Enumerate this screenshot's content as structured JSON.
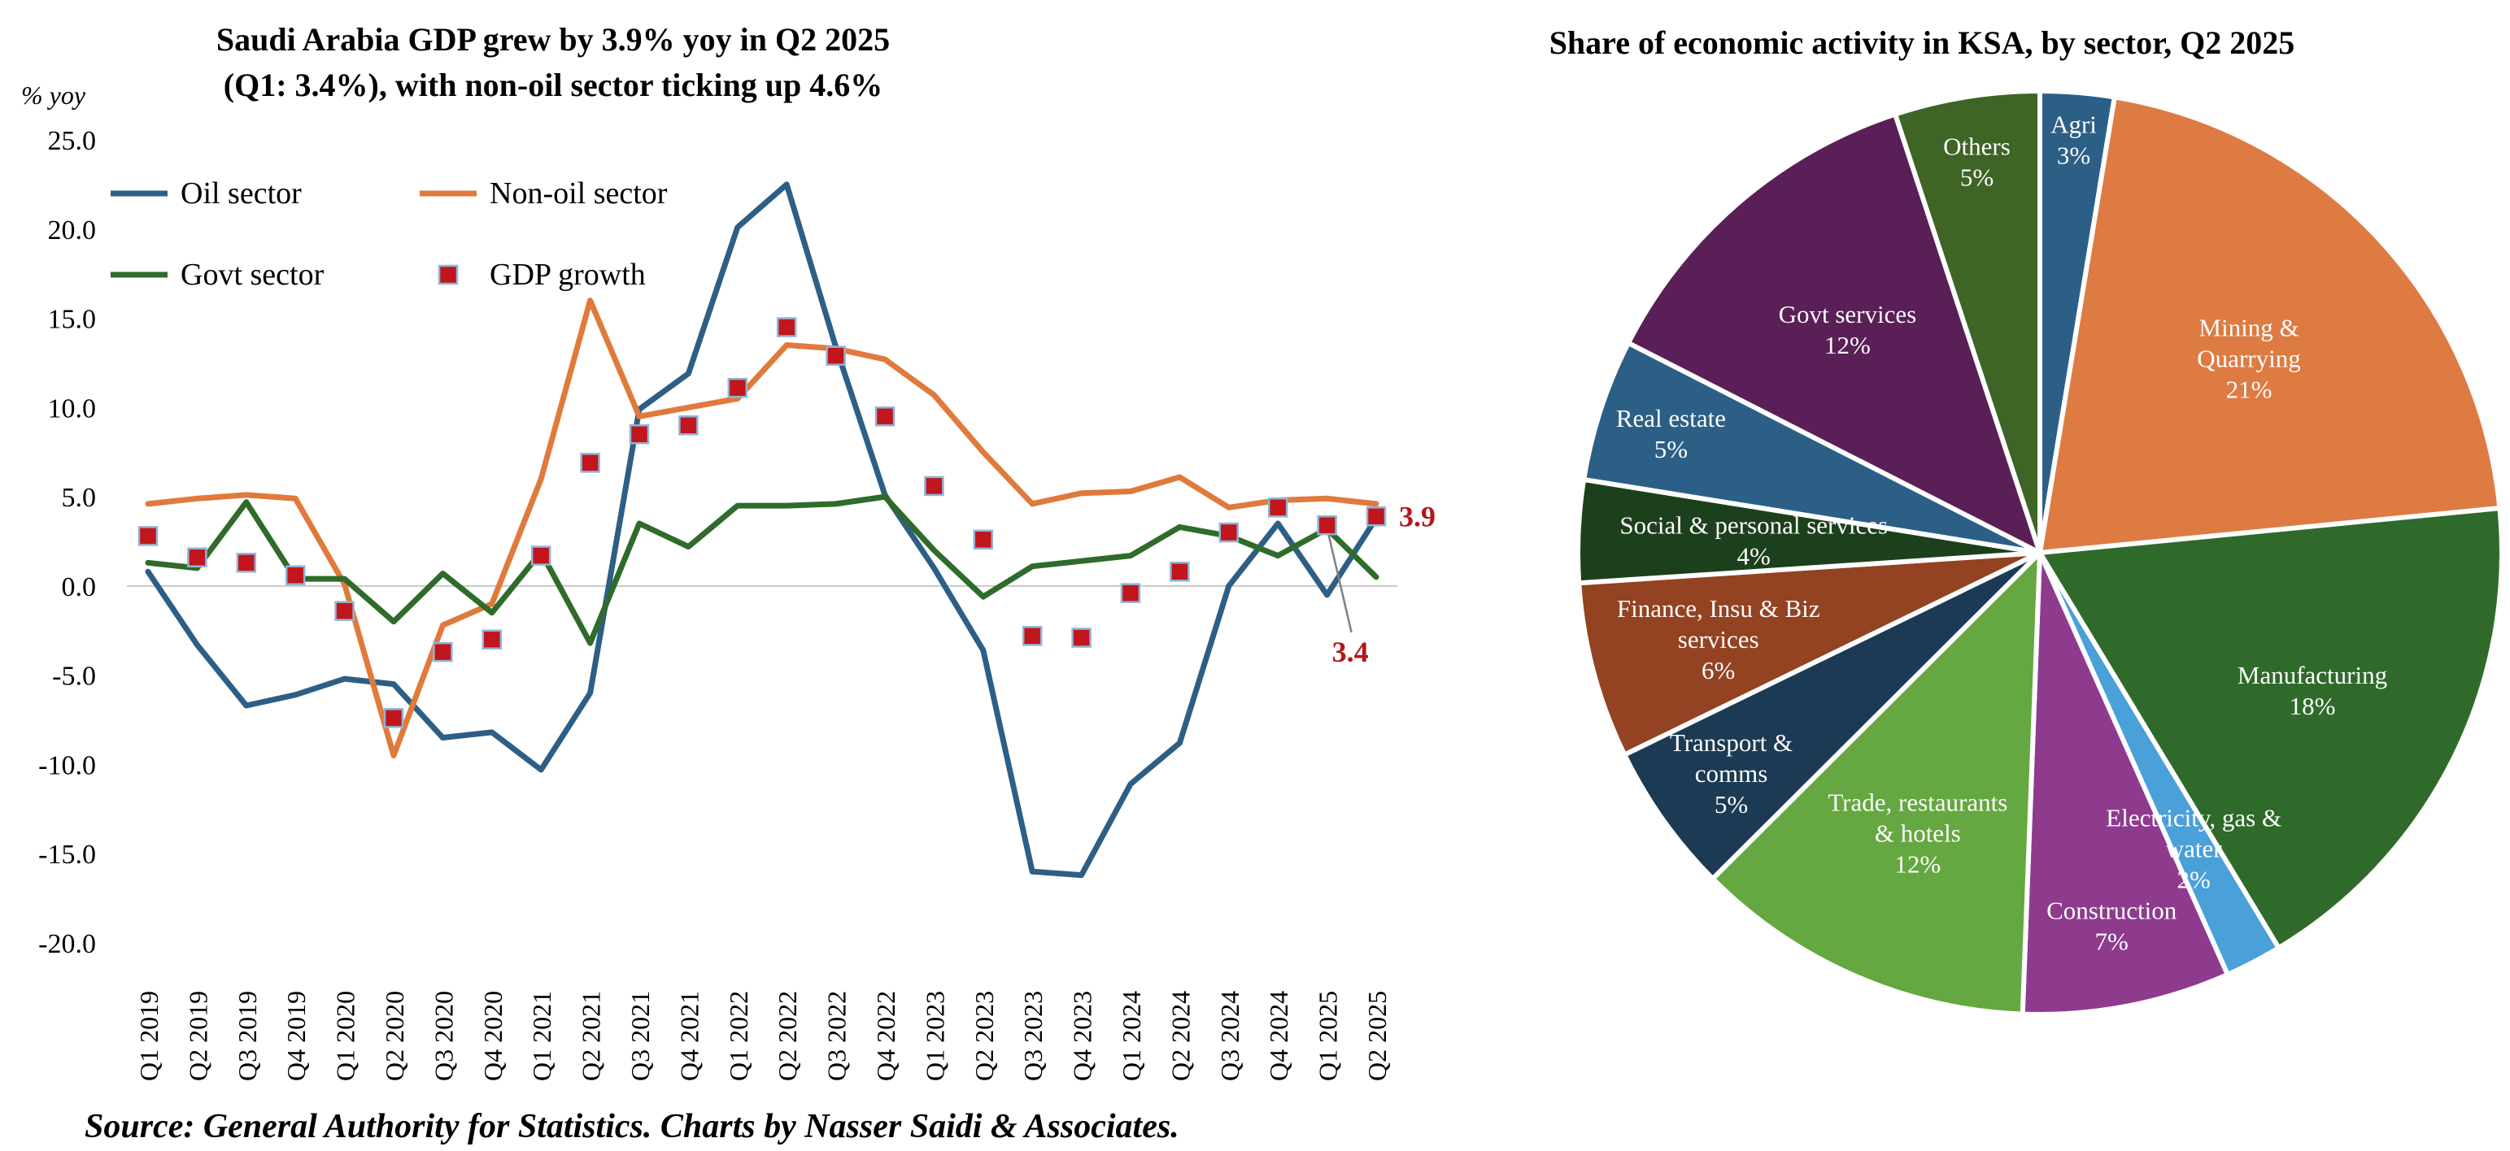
{
  "charts": {
    "line": {
      "title_line1": "Saudi Arabia GDP grew by 3.9% yoy in Q2 2025",
      "title_line2": "(Q1: 3.4%), with non-oil sector ticking up 4.6%",
      "y_unit": "% yoy",
      "last_label": "3.9",
      "prev_label": "3.4"
    },
    "pie": {
      "title": "Share of economic activity in KSA, by sector, Q2 2025"
    }
  },
  "source": "Source: General Authority for Statistics. Charts by Nasser Saidi & Associates.",
  "chart_data": [
    {
      "type": "line",
      "title": "Saudi Arabia GDP grew by 3.9% yoy in Q2 2025 (Q1: 3.4%), with non-oil sector ticking up 4.6%",
      "xlabel": "",
      "ylabel": "% yoy",
      "ylim": [
        -20,
        25
      ],
      "yticks": [
        "25.0",
        "20.0",
        "15.0",
        "10.0",
        "5.0",
        "0.0",
        "-5.0",
        "-10.0",
        "-15.0",
        "-20.0"
      ],
      "grid": false,
      "legend_position": "top-left",
      "categories": [
        "Q1 2019",
        "Q2 2019",
        "Q3 2019",
        "Q4 2019",
        "Q1 2020",
        "Q2 2020",
        "Q3 2020",
        "Q4 2020",
        "Q1 2021",
        "Q2 2021",
        "Q3 2021",
        "Q4 2021",
        "Q1 2022",
        "Q2 2022",
        "Q3 2022",
        "Q4 2022",
        "Q1 2023",
        "Q2 2023",
        "Q3 2023",
        "Q4 2023",
        "Q1 2024",
        "Q2 2024",
        "Q3 2024",
        "Q4 2024",
        "Q1 2025",
        "Q2 2025"
      ],
      "series": [
        {
          "name": "Oil sector",
          "kind": "line",
          "color": "#2d5f86",
          "values": [
            0.8,
            -3.3,
            -6.7,
            -6.1,
            -5.2,
            -5.5,
            -8.5,
            -8.2,
            -10.3,
            -6.0,
            9.9,
            11.9,
            20.1,
            22.5,
            13.4,
            5.1,
            1.0,
            -3.6,
            -16.0,
            -16.2,
            -11.1,
            -8.8,
            0.0,
            3.5,
            -0.5,
            3.8
          ]
        },
        {
          "name": "Non-oil sector",
          "kind": "line",
          "color": "#e07a3c",
          "values": [
            4.6,
            4.9,
            5.1,
            4.9,
            0.1,
            -9.5,
            -2.2,
            -1.0,
            6.0,
            16.0,
            9.5,
            10.0,
            10.5,
            13.5,
            13.3,
            12.7,
            10.7,
            7.5,
            4.6,
            5.2,
            5.3,
            6.1,
            4.4,
            4.8,
            4.9,
            4.6
          ]
        },
        {
          "name": "Govt sector",
          "kind": "line",
          "color": "#2f6b2a",
          "values": [
            1.3,
            1.0,
            4.7,
            0.4,
            0.4,
            -2.0,
            0.7,
            -1.5,
            1.9,
            -3.2,
            3.5,
            2.2,
            4.5,
            4.5,
            4.6,
            5.0,
            2.0,
            -0.6,
            1.1,
            1.4,
            1.7,
            3.3,
            2.8,
            1.7,
            3.2,
            0.5
          ]
        },
        {
          "name": "GDP growth",
          "kind": "markers",
          "color": "#c0161c",
          "values": [
            2.8,
            1.6,
            1.3,
            0.6,
            -1.4,
            -7.4,
            -3.7,
            -3.0,
            1.7,
            6.9,
            8.5,
            9.0,
            11.1,
            14.5,
            12.9,
            9.5,
            5.6,
            2.6,
            -2.8,
            -2.9,
            -0.4,
            0.8,
            3.0,
            4.4,
            3.4,
            3.9
          ]
        }
      ],
      "annotations": [
        {
          "category": "Q2 2025",
          "text": "3.9",
          "value": 3.9
        },
        {
          "category": "Q1 2025",
          "text": "3.4",
          "value": 3.4
        }
      ]
    },
    {
      "type": "pie",
      "title": "Share of economic activity in KSA, by sector, Q2 2025",
      "slices": [
        {
          "label": "Agri",
          "pct": "3%",
          "value": 2.6,
          "color": "#2c5f86",
          "text_color": "#ffffff"
        },
        {
          "label": "Mining & Quarrying",
          "pct": "21%",
          "value": 21.0,
          "color": "#dd7b43",
          "text_color": "#ffffff"
        },
        {
          "label": "Manufacturing",
          "pct": "18%",
          "value": 18.0,
          "color": "#2f6a2b",
          "text_color": "#ffffff"
        },
        {
          "label": "Electricity, gas & water",
          "pct": "2%",
          "value": 2.0,
          "color": "#4aa0d8",
          "text_color": "#ffffff"
        },
        {
          "label": "Construction",
          "pct": "7%",
          "value": 7.3,
          "color": "#8e3b8e",
          "text_color": "#ffffff"
        },
        {
          "label": "Trade, restaurants & hotels",
          "pct": "12%",
          "value": 12.0,
          "color": "#65a740",
          "text_color": "#ffffff"
        },
        {
          "label": "Transport & comms",
          "pct": "5%",
          "value": 5.3,
          "color": "#1c3a53",
          "text_color": "#ffffff"
        },
        {
          "label": "Finance, Insu & Biz services",
          "pct": "6%",
          "value": 6.2,
          "color": "#934222",
          "text_color": "#ffffff"
        },
        {
          "label": "Social & personal services",
          "pct": "4%",
          "value": 3.6,
          "color": "#1d401c",
          "text_color": "#ffffff"
        },
        {
          "label": "Real estate",
          "pct": "5%",
          "value": 5.0,
          "color": "#2c5f86",
          "text_color": "#ffffff"
        },
        {
          "label": "Govt services",
          "pct": "12%",
          "value": 12.5,
          "color": "#5a1f57",
          "text_color": "#ffffff"
        },
        {
          "label": "Others",
          "pct": "5%",
          "value": 5.1,
          "color": "#3e6426",
          "text_color": "#ffffff"
        }
      ]
    }
  ]
}
